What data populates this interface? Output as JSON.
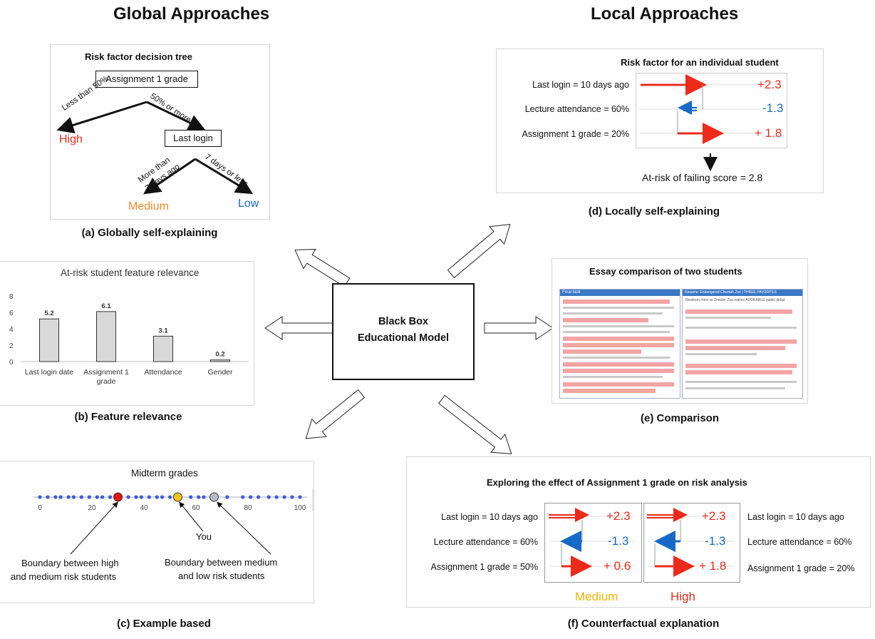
{
  "headings": {
    "global": "Global Approaches",
    "local": "Local Approaches"
  },
  "center": {
    "line1": "Black Box",
    "line2": "Educational Model"
  },
  "captions": {
    "a": "(a) Globally self-explaining",
    "b": "(b) Feature relevance",
    "c": "(c) Example based",
    "d": "(d) Locally self-explaining",
    "e": "(e) Comparison",
    "f": "(f) Counterfactual  explanation"
  },
  "tree": {
    "title": "Risk factor decision tree",
    "root": "Assignment 1 grade",
    "edge_left": "Less than 50%",
    "edge_right": "50% or more",
    "leaf_high": "High",
    "node2": "Last login",
    "edge2_left_1": "More than",
    "edge2_left_2": "7 days ago",
    "edge2_right": "7 days or less",
    "leaf_medium": "Medium",
    "leaf_low": "Low",
    "colors": {
      "high": "#ee2a1b",
      "medium": "#f0892a",
      "low": "#1769c7"
    }
  },
  "chart_data": {
    "type": "bar",
    "title": "At-risk student feature relevance",
    "categories": [
      "Last login date",
      "Assignment 1 grade",
      "Attendance",
      "Gender"
    ],
    "category_lines": [
      [
        "Last login date"
      ],
      [
        "Assignment 1",
        "grade"
      ],
      [
        "Attendance"
      ],
      [
        "Gender"
      ]
    ],
    "values": [
      5.2,
      6.1,
      3.1,
      0.2
    ],
    "value_labels": [
      "5.2",
      "6.1",
      "3.1",
      "0.2"
    ],
    "ylim": [
      0,
      8
    ],
    "yticks": [
      0,
      2,
      4,
      6,
      8
    ],
    "xlabel": "",
    "ylabel": "",
    "bar_color": "#d9d9d9"
  },
  "example": {
    "title": "Midterm grades",
    "ticks": [
      "0",
      "20",
      "40",
      "60",
      "80",
      "100"
    ],
    "tick_values": [
      0,
      20,
      40,
      60,
      80,
      100
    ],
    "points": [
      0,
      3,
      6,
      8,
      11,
      13,
      16,
      19,
      22,
      24,
      27,
      34,
      37,
      39,
      42,
      45,
      47,
      50,
      52,
      58,
      61,
      63,
      66,
      72,
      78,
      81,
      84,
      88,
      91,
      94,
      97,
      100
    ],
    "marked": [
      {
        "value": 30,
        "color": "#ee1111"
      },
      {
        "value": 53,
        "color": "#f5c518"
      },
      {
        "value": 67,
        "color": "#b8bcc8"
      }
    ],
    "you_label": "You",
    "boundary_hm_1": "Boundary between high",
    "boundary_hm_2": "and medium risk students",
    "boundary_ml_1": "Boundary between medium",
    "boundary_ml_2": "and low risk students"
  },
  "local": {
    "title": "Risk factor for an individual student",
    "rows": [
      {
        "label": "Last login = 10 days ago",
        "value": "+2.3"
      },
      {
        "label": "Lecture attendance = 60%",
        "value": "-1.3"
      },
      {
        "label": "Assignment 1 grade = 20%",
        "value": "+ 1.8"
      }
    ],
    "score": "At-risk of failing score = 2.8"
  },
  "comparison": {
    "title": "Essay comparison of two students",
    "left_header": "Final task",
    "right_header": "Resume: Endangered Cheetah Zoo | THREE FAVORITES",
    "right_intro": "Newborn rhino at Chester Zoo makes ADORABLE public debut"
  },
  "counterfactual": {
    "title": "Exploring the effect of Assignment 1 grade on risk analysis",
    "left_rows": [
      {
        "label": "Last login = 10 days ago",
        "value": "+2.3"
      },
      {
        "label": "Lecture attendance = 60%",
        "value": "-1.3"
      },
      {
        "label": "Assignment 1 grade = 50%",
        "value": "+ 0.6"
      }
    ],
    "right_rows": [
      {
        "label": "Last login = 10 days ago",
        "value": "+2.3"
      },
      {
        "label": "Lecture attendance = 60%",
        "value": "-1.3"
      },
      {
        "label": "Assignment 1 grade = 20%",
        "value": "+ 1.8"
      }
    ],
    "left_outcome": "Medium",
    "right_outcome": "High",
    "colors": {
      "medium": "#f4b400",
      "high": "#ee2a1b"
    }
  }
}
